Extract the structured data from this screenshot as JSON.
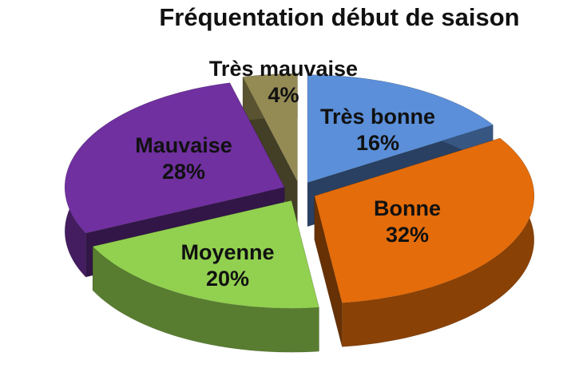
{
  "chart_data": {
    "type": "pie",
    "title": "Fréquentation début de saison",
    "style": "3d-exploded",
    "categories": [
      "Très bonne",
      "Bonne",
      "Moyenne",
      "Mauvaise",
      "Très mauvaise"
    ],
    "values": [
      16,
      32,
      20,
      28,
      4
    ],
    "labels": [
      "16%",
      "32%",
      "20%",
      "28%",
      "4%"
    ],
    "colors": [
      "#5b8fd9",
      "#e46c0a",
      "#92d050",
      "#7030a0",
      "#948a54"
    ],
    "legend": "none"
  }
}
